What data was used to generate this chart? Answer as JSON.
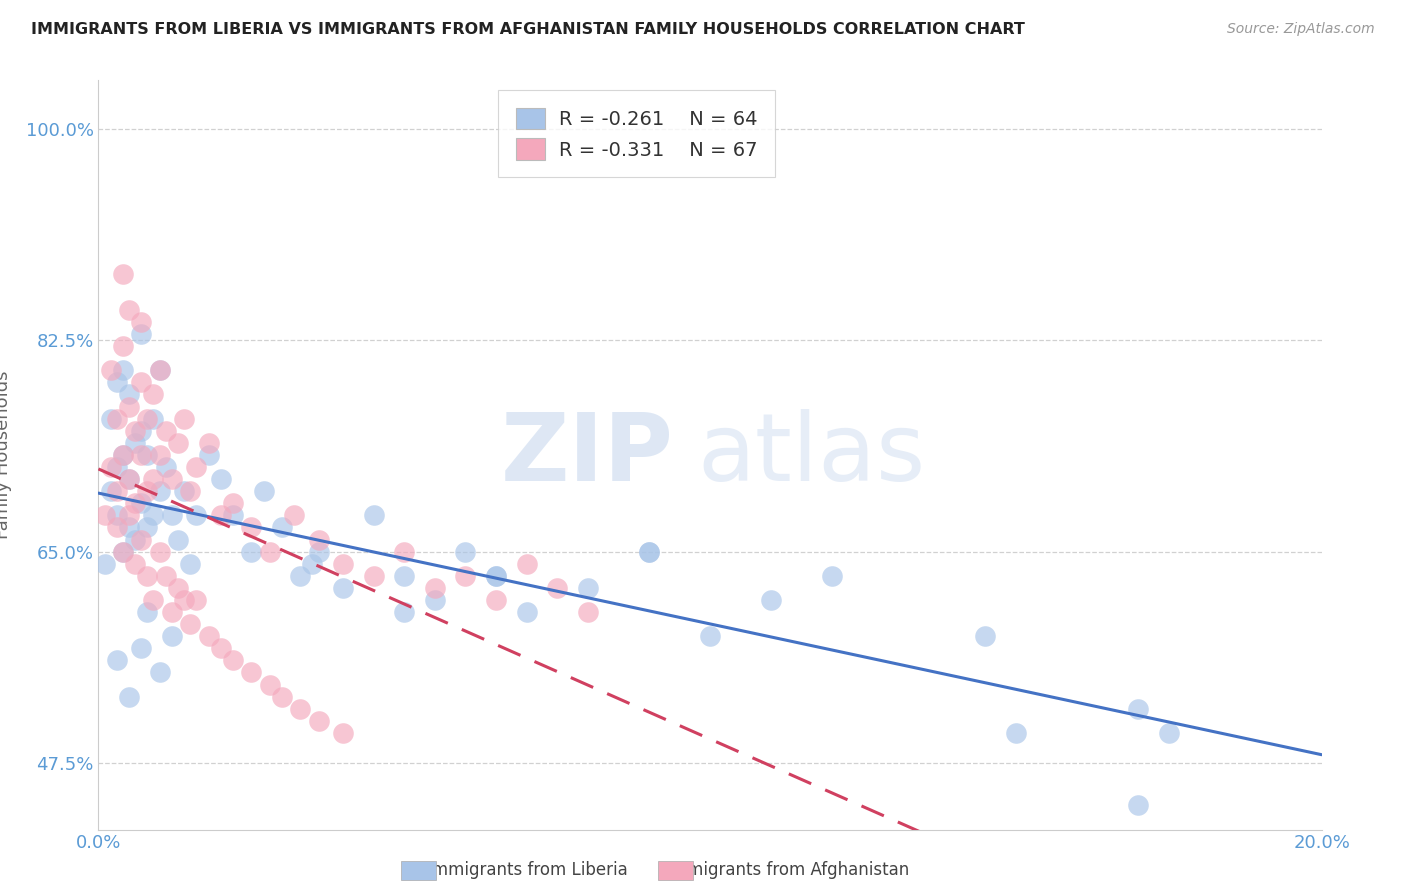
{
  "title": "IMMIGRANTS FROM LIBERIA VS IMMIGRANTS FROM AFGHANISTAN FAMILY HOUSEHOLDS CORRELATION CHART",
  "source": "Source: ZipAtlas.com",
  "ylabel": "Family Households",
  "xlim": [
    0.0,
    0.2
  ],
  "ylim": [
    0.42,
    1.04
  ],
  "yticks": [
    0.475,
    0.65,
    0.825,
    1.0
  ],
  "ytick_labels": [
    "47.5%",
    "65.0%",
    "82.5%",
    "100.0%"
  ],
  "xticks": [
    0.0,
    0.05,
    0.1,
    0.15,
    0.2
  ],
  "xtick_labels": [
    "0.0%",
    "",
    "",
    "",
    "20.0%"
  ],
  "legend_r1": "-0.261",
  "legend_n1": "64",
  "legend_r2": "-0.331",
  "legend_n2": "67",
  "color_liberia": "#a8c4e8",
  "color_afghanistan": "#f4a8bc",
  "color_liberia_line": "#4472c4",
  "color_afghanistan_line": "#d04060",
  "color_axis_labels": "#5b9bd5",
  "watermark_zip": "ZIP",
  "watermark_atlas": "atlas",
  "background_color": "#ffffff",
  "liberia_x": [
    0.001,
    0.002,
    0.002,
    0.003,
    0.003,
    0.003,
    0.004,
    0.004,
    0.004,
    0.005,
    0.005,
    0.005,
    0.006,
    0.006,
    0.007,
    0.007,
    0.007,
    0.008,
    0.008,
    0.009,
    0.009,
    0.01,
    0.01,
    0.011,
    0.012,
    0.013,
    0.014,
    0.015,
    0.016,
    0.018,
    0.02,
    0.022,
    0.025,
    0.027,
    0.03,
    0.033,
    0.036,
    0.04,
    0.045,
    0.05,
    0.055,
    0.06,
    0.065,
    0.07,
    0.08,
    0.09,
    0.1,
    0.11,
    0.12,
    0.145,
    0.17,
    0.175,
    0.003,
    0.005,
    0.007,
    0.008,
    0.01,
    0.012,
    0.035,
    0.05,
    0.065,
    0.09,
    0.15,
    0.17
  ],
  "liberia_y": [
    0.64,
    0.7,
    0.76,
    0.68,
    0.72,
    0.79,
    0.65,
    0.73,
    0.8,
    0.67,
    0.71,
    0.78,
    0.66,
    0.74,
    0.69,
    0.75,
    0.83,
    0.67,
    0.73,
    0.68,
    0.76,
    0.7,
    0.8,
    0.72,
    0.68,
    0.66,
    0.7,
    0.64,
    0.68,
    0.73,
    0.71,
    0.68,
    0.65,
    0.7,
    0.67,
    0.63,
    0.65,
    0.62,
    0.68,
    0.63,
    0.61,
    0.65,
    0.63,
    0.6,
    0.62,
    0.65,
    0.58,
    0.61,
    0.63,
    0.58,
    0.52,
    0.5,
    0.56,
    0.53,
    0.57,
    0.6,
    0.55,
    0.58,
    0.64,
    0.6,
    0.63,
    0.65,
    0.5,
    0.44
  ],
  "afghanistan_x": [
    0.001,
    0.002,
    0.002,
    0.003,
    0.003,
    0.004,
    0.004,
    0.004,
    0.005,
    0.005,
    0.005,
    0.006,
    0.006,
    0.007,
    0.007,
    0.007,
    0.008,
    0.008,
    0.009,
    0.009,
    0.01,
    0.01,
    0.011,
    0.012,
    0.013,
    0.014,
    0.015,
    0.016,
    0.018,
    0.02,
    0.022,
    0.025,
    0.028,
    0.032,
    0.036,
    0.04,
    0.045,
    0.05,
    0.055,
    0.06,
    0.065,
    0.07,
    0.075,
    0.08,
    0.003,
    0.004,
    0.005,
    0.006,
    0.007,
    0.008,
    0.009,
    0.01,
    0.011,
    0.012,
    0.013,
    0.014,
    0.015,
    0.016,
    0.018,
    0.02,
    0.022,
    0.025,
    0.028,
    0.03,
    0.033,
    0.036,
    0.04
  ],
  "afghanistan_y": [
    0.68,
    0.72,
    0.8,
    0.7,
    0.76,
    0.73,
    0.82,
    0.88,
    0.71,
    0.77,
    0.85,
    0.69,
    0.75,
    0.73,
    0.79,
    0.84,
    0.7,
    0.76,
    0.71,
    0.78,
    0.73,
    0.8,
    0.75,
    0.71,
    0.74,
    0.76,
    0.7,
    0.72,
    0.74,
    0.68,
    0.69,
    0.67,
    0.65,
    0.68,
    0.66,
    0.64,
    0.63,
    0.65,
    0.62,
    0.63,
    0.61,
    0.64,
    0.62,
    0.6,
    0.67,
    0.65,
    0.68,
    0.64,
    0.66,
    0.63,
    0.61,
    0.65,
    0.63,
    0.6,
    0.62,
    0.61,
    0.59,
    0.61,
    0.58,
    0.57,
    0.56,
    0.55,
    0.54,
    0.53,
    0.52,
    0.51,
    0.5
  ]
}
